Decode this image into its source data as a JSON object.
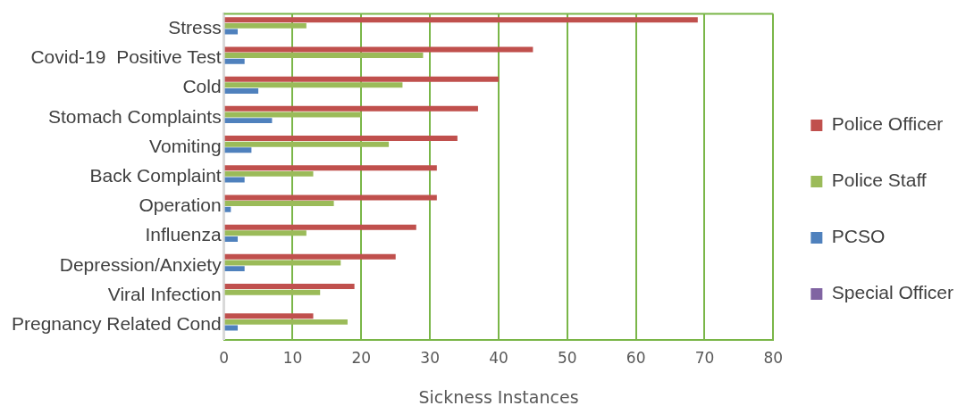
{
  "chart_data": {
    "type": "bar",
    "orientation": "horizontal",
    "xlabel": "Sickness Instances",
    "categories": [
      "Stress",
      "Covid-19  Positive Test",
      "Cold",
      "Stomach Complaints",
      "Vomiting",
      "Back Complaint",
      "Operation",
      "Influenza",
      "Depression/Anxiety",
      "Viral Infection",
      "Pregnancy Related Cond"
    ],
    "series": [
      {
        "name": "Police Officer",
        "color": "#c0504d",
        "values": [
          69,
          45,
          40,
          37,
          34,
          31,
          31,
          28,
          25,
          19,
          13
        ]
      },
      {
        "name": "Police Staff",
        "color": "#9bbb59",
        "values": [
          12,
          29,
          26,
          20,
          24,
          13,
          16,
          12,
          17,
          14,
          18
        ]
      },
      {
        "name": "PCSO",
        "color": "#4f81bd",
        "values": [
          2,
          3,
          5,
          7,
          4,
          3,
          1,
          2,
          3,
          0,
          2
        ]
      },
      {
        "name": "Special Officer",
        "color": "#8064a2",
        "values": [
          0,
          0,
          0,
          0,
          0,
          0,
          0,
          0,
          0,
          0,
          0
        ]
      }
    ],
    "xlim": [
      0,
      80
    ],
    "xticks": [
      0,
      10,
      20,
      30,
      40,
      50,
      60,
      70,
      80
    ],
    "grid": "x",
    "legend": "right"
  }
}
